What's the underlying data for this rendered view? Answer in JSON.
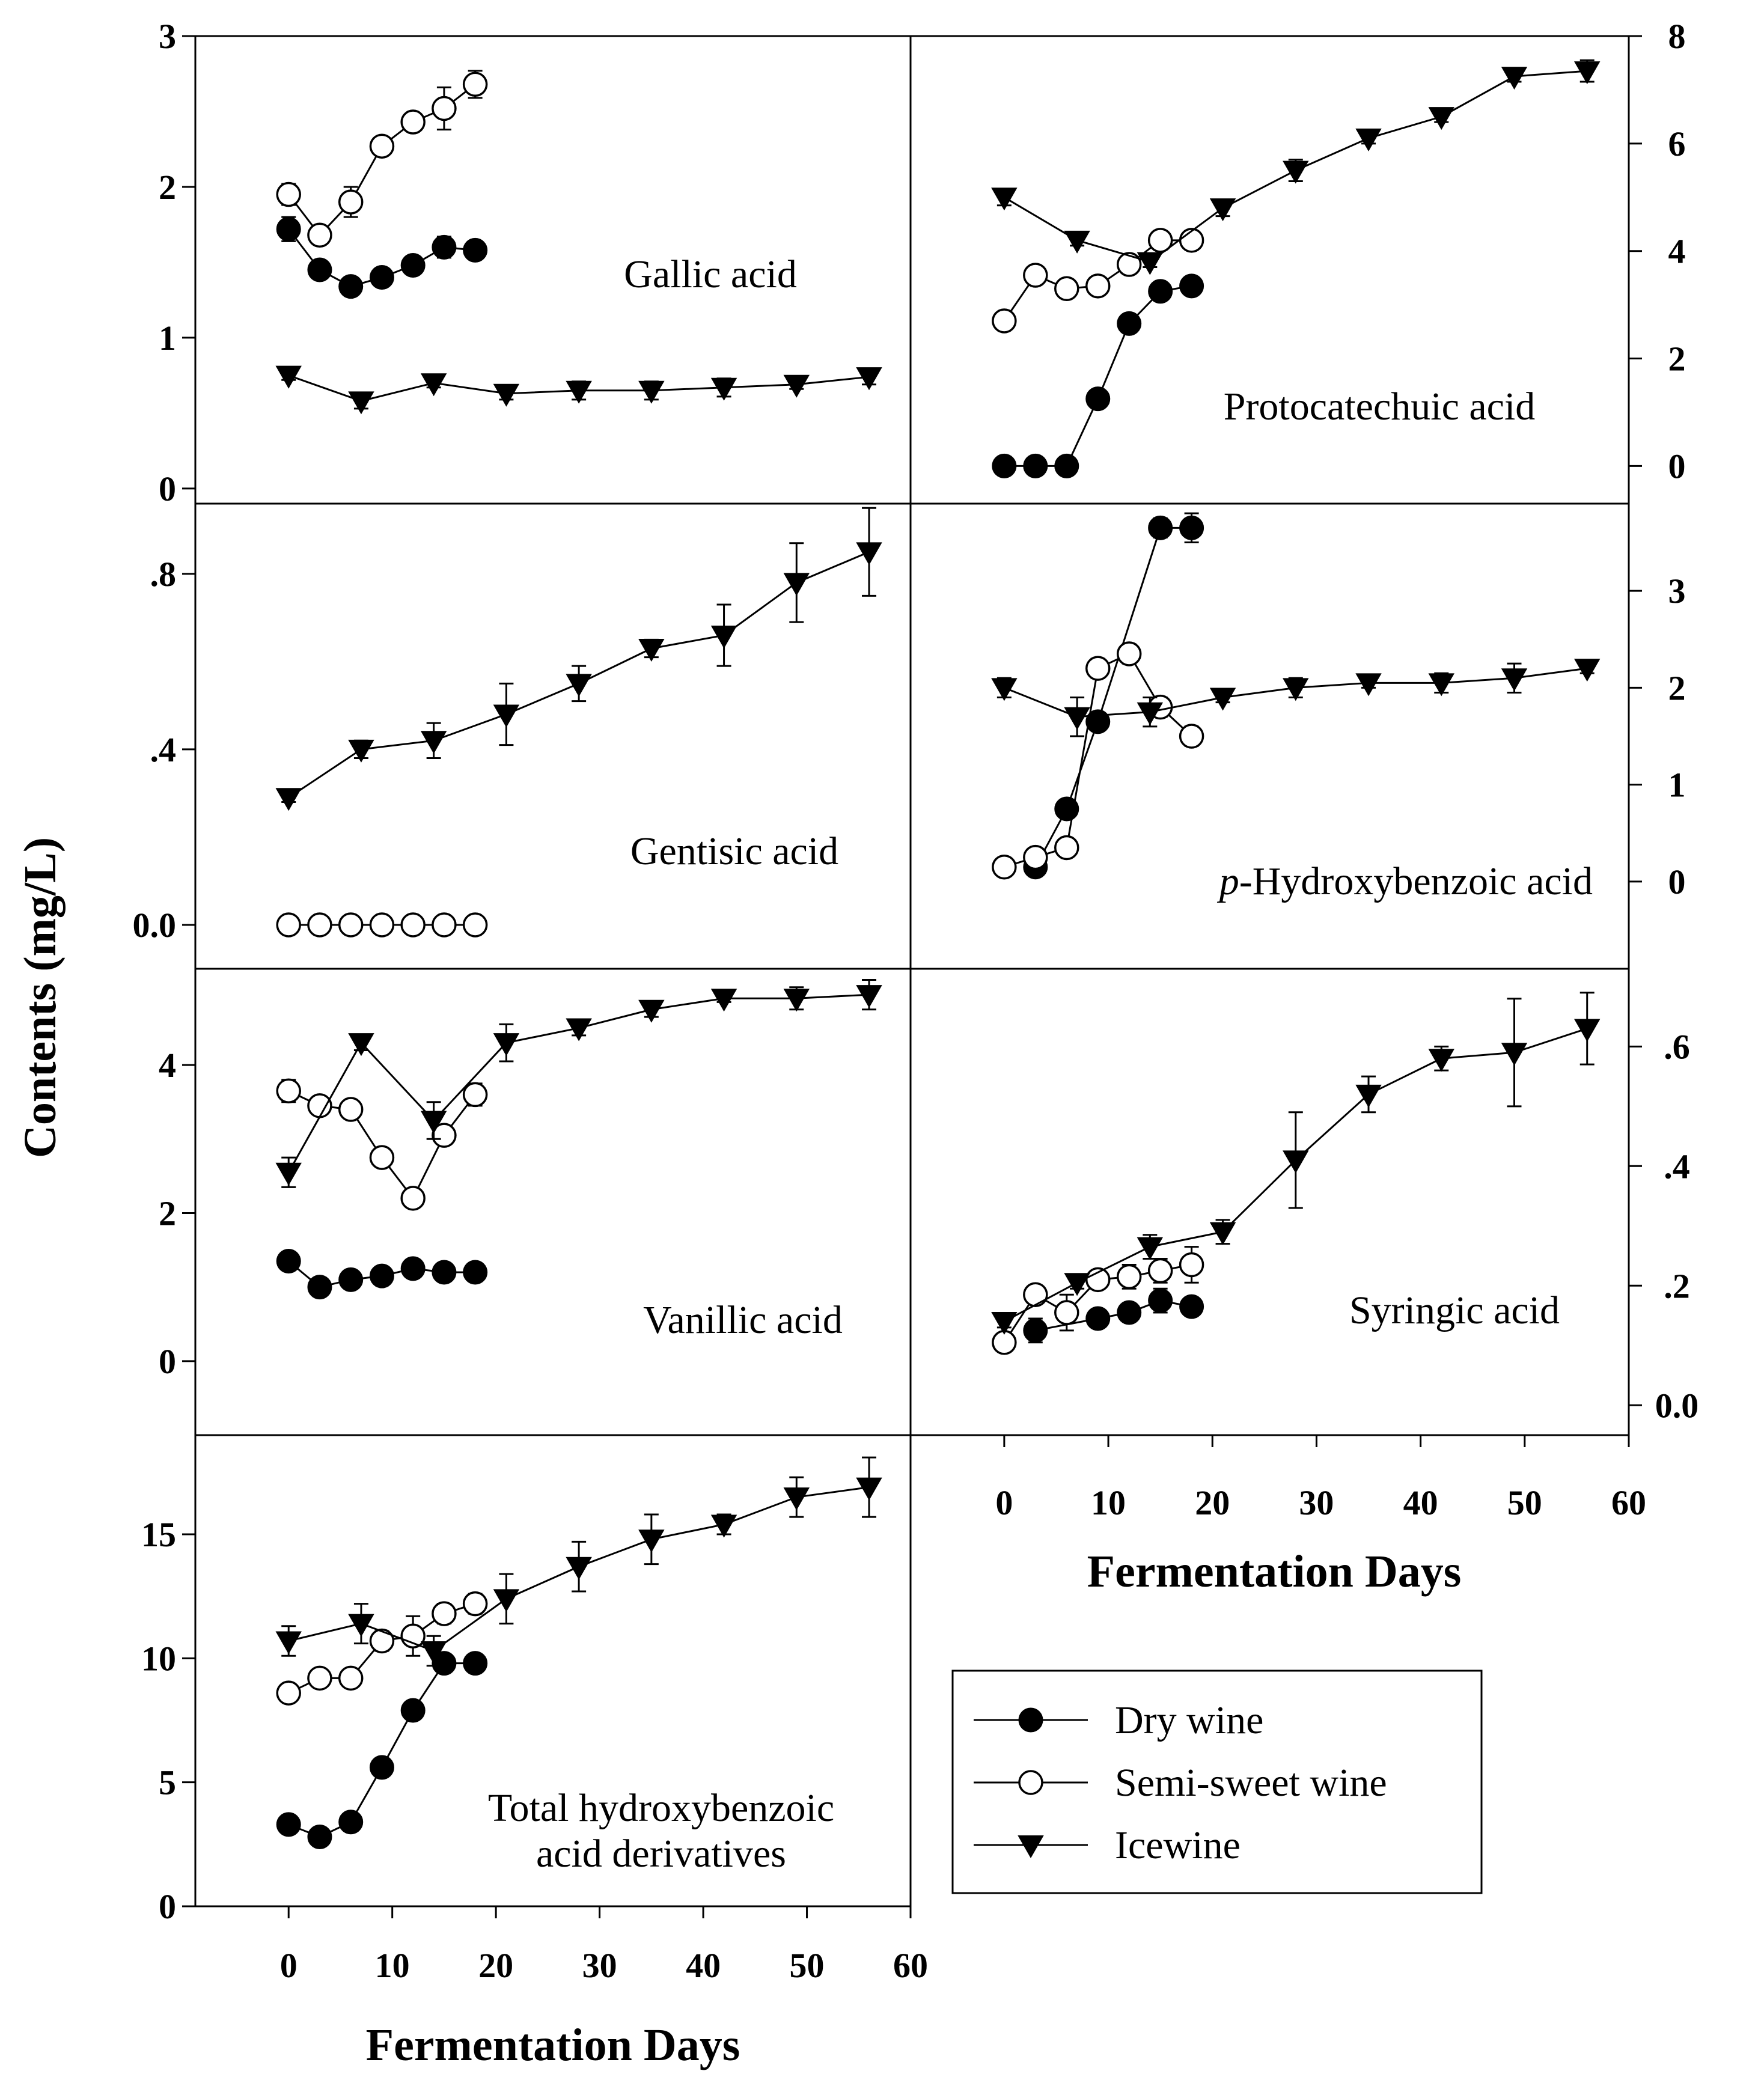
{
  "figure": {
    "ylabel": "Contents (mg/L)",
    "xlabel": "Fermentation Days"
  },
  "legend": [
    {
      "name": "Dry wine",
      "marker": "circle-filled"
    },
    {
      "name": "Semi-sweet wine",
      "marker": "circle-open"
    },
    {
      "name": "Icewine",
      "marker": "triangle-down-filled"
    }
  ],
  "x_ticks": [
    0,
    10,
    20,
    30,
    40,
    50,
    60
  ],
  "chart_data": [
    {
      "id": "gallic",
      "type": "line",
      "title": "Gallic acid",
      "xlim": [
        -9,
        60
      ],
      "ylim": [
        -0.1,
        3
      ],
      "y_ticks": [
        0,
        1,
        2,
        3
      ],
      "y_tick_labels": [
        "0",
        "1",
        "2",
        "3"
      ],
      "y_axis": "left",
      "series": [
        {
          "name": "Dry wine",
          "x": [
            0,
            3,
            6,
            9,
            12,
            15,
            18
          ],
          "y": [
            1.72,
            1.45,
            1.34,
            1.4,
            1.48,
            1.6,
            1.58
          ],
          "err": [
            0.08,
            0.04,
            0.05,
            0.04,
            0.04,
            0.07,
            0.03
          ]
        },
        {
          "name": "Semi-sweet wine",
          "x": [
            0,
            3,
            6,
            9,
            12,
            15,
            18
          ],
          "y": [
            1.95,
            1.68,
            1.9,
            2.27,
            2.43,
            2.52,
            2.68
          ],
          "err": [
            0.07,
            0.04,
            0.1,
            0.06,
            0.04,
            0.14,
            0.09
          ]
        },
        {
          "name": "Icewine",
          "x": [
            0,
            7,
            14,
            21,
            28,
            35,
            42,
            49,
            56
          ],
          "y": [
            0.75,
            0.58,
            0.7,
            0.63,
            0.65,
            0.65,
            0.67,
            0.69,
            0.74
          ],
          "err": [
            0.03,
            0.05,
            0.03,
            0.04,
            0.06,
            0.06,
            0.06,
            0.03,
            0.05
          ]
        }
      ]
    },
    {
      "id": "protocatechuic",
      "type": "line",
      "title": "Protocatechuic acid",
      "xlim": [
        -9,
        60
      ],
      "ylim": [
        -0.7,
        8.0
      ],
      "y_ticks": [
        0,
        2,
        4,
        6,
        8
      ],
      "y_tick_labels": [
        "0",
        "2",
        "4",
        "6",
        "8"
      ],
      "y_axis": "right",
      "series": [
        {
          "name": "Dry wine",
          "x": [
            0,
            3,
            6,
            9,
            12,
            15,
            18
          ],
          "y": [
            0.0,
            0.0,
            0.0,
            1.25,
            2.65,
            3.25,
            3.35
          ],
          "err": [
            0,
            0,
            0,
            0,
            0.05,
            0.05,
            0.05
          ]
        },
        {
          "name": "Semi-sweet wine",
          "x": [
            0,
            3,
            6,
            9,
            12,
            15,
            18
          ],
          "y": [
            2.7,
            3.55,
            3.3,
            3.35,
            3.75,
            4.2,
            4.2
          ],
          "err": [
            0.05,
            0.05,
            0.05,
            0.05,
            0.05,
            0.1,
            0.05
          ]
        },
        {
          "name": "Icewine",
          "x": [
            0,
            7,
            14,
            21,
            28,
            35,
            42,
            49,
            56
          ],
          "y": [
            5.0,
            4.2,
            3.8,
            4.8,
            5.5,
            6.1,
            6.5,
            7.25,
            7.35
          ],
          "err": [
            0.15,
            0.1,
            0.1,
            0.15,
            0.2,
            0.1,
            0.1,
            0.1,
            0.2
          ]
        }
      ]
    },
    {
      "id": "gentisic",
      "type": "line",
      "title": "Gentisic acid",
      "xlim": [
        -9,
        60
      ],
      "ylim": [
        -0.1,
        0.96
      ],
      "y_ticks": [
        0,
        0.4,
        0.8
      ],
      "y_tick_labels": [
        "0.0",
        ".4",
        ".8"
      ],
      "y_axis": "left",
      "series": [
        {
          "name": "Semi-sweet wine",
          "x": [
            0,
            3,
            6,
            9,
            12,
            15,
            18
          ],
          "y": [
            0,
            0,
            0,
            0,
            0,
            0,
            0
          ],
          "err": [
            0,
            0,
            0,
            0,
            0,
            0,
            0
          ]
        },
        {
          "name": "Icewine",
          "x": [
            0,
            7,
            14,
            21,
            28,
            35,
            42,
            49,
            56
          ],
          "y": [
            0.29,
            0.4,
            0.42,
            0.48,
            0.55,
            0.63,
            0.66,
            0.78,
            0.85
          ],
          "err": [
            0.01,
            0.02,
            0.04,
            0.07,
            0.04,
            0.02,
            0.07,
            0.09,
            0.1
          ]
        }
      ]
    },
    {
      "id": "phydroxybenzoic",
      "type": "line",
      "title_prefix": "p",
      "title": "-Hydroxybenzoic acid",
      "xlim": [
        -9,
        60
      ],
      "ylim": [
        -0.9,
        3.9
      ],
      "y_ticks": [
        0,
        1,
        2,
        3
      ],
      "y_tick_labels": [
        "0",
        "1",
        "2",
        "3"
      ],
      "y_axis": "right",
      "series": [
        {
          "name": "Dry wine",
          "x": [
            3,
            6,
            9,
            15,
            18
          ],
          "y": [
            0.15,
            0.75,
            1.65,
            3.65,
            3.65
          ],
          "err": [
            0.05,
            0.05,
            0.05,
            0.1,
            0.15
          ]
        },
        {
          "name": "Semi-sweet wine",
          "x": [
            0,
            3,
            6,
            9,
            12,
            15,
            18
          ],
          "y": [
            0.15,
            0.25,
            0.35,
            2.2,
            2.35,
            1.8,
            1.5
          ],
          "err": [
            0.05,
            0.05,
            0.05,
            0.1,
            0.1,
            0.1,
            0.1
          ]
        },
        {
          "name": "Icewine",
          "x": [
            0,
            7,
            14,
            21,
            28,
            35,
            42,
            49,
            56
          ],
          "y": [
            2.0,
            1.7,
            1.75,
            1.9,
            2.0,
            2.05,
            2.05,
            2.1,
            2.2
          ],
          "err": [
            0.1,
            0.2,
            0.15,
            0.05,
            0.1,
            0.05,
            0.1,
            0.15,
            0.05
          ]
        }
      ]
    },
    {
      "id": "vanillic",
      "type": "line",
      "title": "Vanillic acid",
      "xlim": [
        -9,
        60
      ],
      "ylim": [
        -1.0,
        5.3
      ],
      "y_ticks": [
        0,
        2,
        4
      ],
      "y_tick_labels": [
        "0",
        "2",
        "4"
      ],
      "y_axis": "left",
      "series": [
        {
          "name": "Dry wine",
          "x": [
            0,
            3,
            6,
            9,
            12,
            15,
            18
          ],
          "y": [
            1.35,
            1.0,
            1.1,
            1.15,
            1.25,
            1.2,
            1.2
          ],
          "err": [
            0.05,
            0.05,
            0.05,
            0.05,
            0.05,
            0.05,
            0.05
          ]
        },
        {
          "name": "Semi-sweet wine",
          "x": [
            0,
            3,
            6,
            9,
            12,
            15,
            18
          ],
          "y": [
            3.65,
            3.45,
            3.4,
            2.75,
            2.2,
            3.05,
            3.6
          ],
          "err": [
            0.15,
            0.05,
            0.05,
            0.05,
            0.05,
            0.05,
            0.15
          ]
        },
        {
          "name": "Icewine",
          "x": [
            0,
            7,
            14,
            21,
            28,
            35,
            42,
            49,
            56
          ],
          "y": [
            2.55,
            4.3,
            3.25,
            4.3,
            4.5,
            4.75,
            4.9,
            4.9,
            4.95
          ],
          "err": [
            0.2,
            0.1,
            0.25,
            0.25,
            0.1,
            0.1,
            0.05,
            0.15,
            0.2
          ]
        }
      ]
    },
    {
      "id": "syringic",
      "type": "line",
      "title": "Syringic acid",
      "xlim": [
        -9,
        60
      ],
      "ylim": [
        -0.05,
        0.73
      ],
      "y_ticks": [
        0,
        0.2,
        0.4,
        0.6
      ],
      "y_tick_labels": [
        "0.0",
        ".2",
        ".4",
        ".6"
      ],
      "y_axis": "right",
      "series": [
        {
          "name": "Dry wine",
          "x": [
            3,
            9,
            12,
            15,
            18
          ],
          "y": [
            0.125,
            0.145,
            0.155,
            0.175,
            0.165
          ],
          "err": [
            0.02,
            0.01,
            0.01,
            0.02,
            0.01
          ]
        },
        {
          "name": "Semi-sweet wine",
          "x": [
            0,
            3,
            6,
            9,
            12,
            15,
            18
          ],
          "y": [
            0.105,
            0.185,
            0.155,
            0.21,
            0.215,
            0.225,
            0.235
          ],
          "err": [
            0.01,
            0.01,
            0.03,
            0.01,
            0.02,
            0.02,
            0.03
          ]
        },
        {
          "name": "Icewine",
          "x": [
            0,
            7,
            14,
            21,
            28,
            35,
            42,
            49,
            56
          ],
          "y": [
            0.14,
            0.205,
            0.265,
            0.29,
            0.41,
            0.52,
            0.58,
            0.59,
            0.63
          ],
          "err": [
            0.01,
            0.01,
            0.02,
            0.02,
            0.08,
            0.03,
            0.02,
            0.09,
            0.06
          ]
        }
      ]
    },
    {
      "id": "total",
      "type": "line",
      "title_lines": [
        "Total hydroxybenzoic",
        "acid derivatives"
      ],
      "xlim": [
        -9,
        60
      ],
      "ylim": [
        0,
        19
      ],
      "y_ticks": [
        0,
        5,
        10,
        15
      ],
      "y_tick_labels": [
        "0",
        "5",
        "10",
        "15"
      ],
      "y_axis": "left",
      "series": [
        {
          "name": "Dry wine",
          "x": [
            0,
            3,
            6,
            9,
            12,
            15,
            18
          ],
          "y": [
            3.3,
            2.8,
            3.4,
            5.6,
            7.9,
            9.8,
            9.8
          ],
          "err": [
            0.2,
            0.2,
            0.2,
            0.2,
            0.2,
            0.3,
            0.2
          ]
        },
        {
          "name": "Semi-sweet wine",
          "x": [
            0,
            3,
            6,
            9,
            12,
            15,
            18
          ],
          "y": [
            8.6,
            9.2,
            9.2,
            10.7,
            10.9,
            11.8,
            12.2
          ],
          "err": [
            0.2,
            0.2,
            0.2,
            0.4,
            0.8,
            0.4,
            0.4
          ]
        },
        {
          "name": "Icewine",
          "x": [
            0,
            7,
            14,
            21,
            28,
            35,
            42,
            49,
            56
          ],
          "y": [
            10.7,
            11.4,
            10.3,
            12.4,
            13.7,
            14.8,
            15.4,
            16.5,
            16.9
          ],
          "err": [
            0.6,
            0.8,
            0.6,
            1.0,
            1.0,
            1.0,
            0.4,
            0.8,
            1.2
          ]
        }
      ]
    }
  ]
}
